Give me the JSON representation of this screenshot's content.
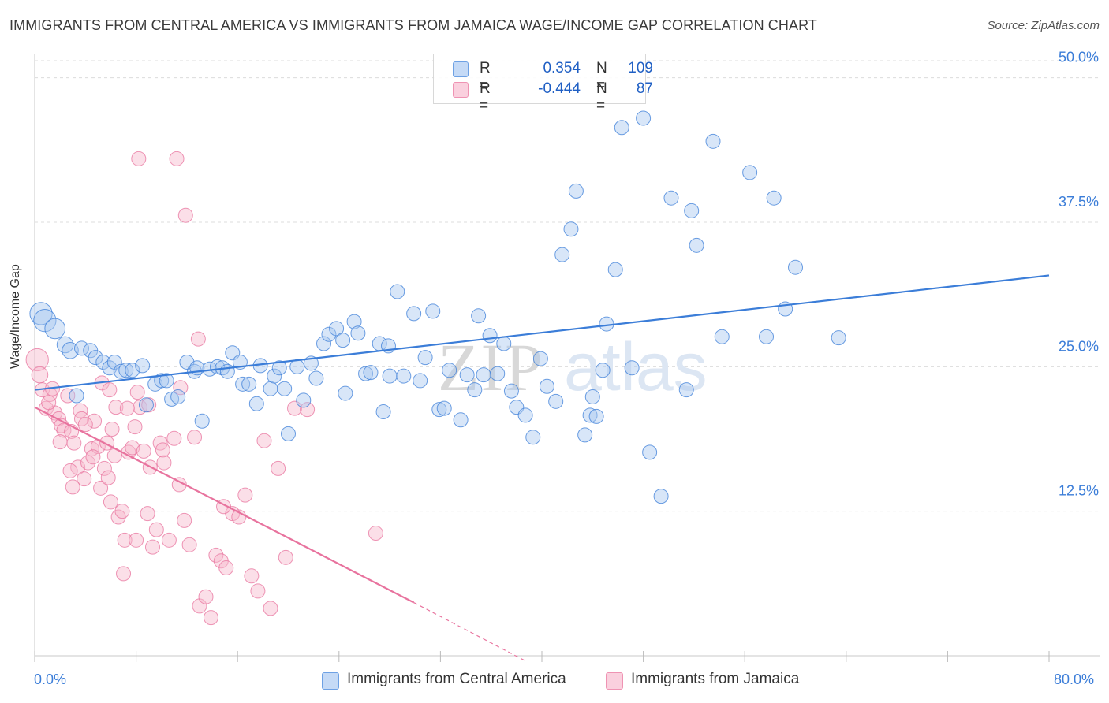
{
  "title": "IMMIGRANTS FROM CENTRAL AMERICA VS IMMIGRANTS FROM JAMAICA WAGE/INCOME GAP CORRELATION CHART",
  "source": "Source: ZipAtlas.com",
  "watermark": "ZIPatlas",
  "legend": {
    "rows": [
      {
        "r_label": "R =",
        "r_value": "0.354",
        "n_label": "N =",
        "n_value": "109",
        "color": "#a9c8f0"
      },
      {
        "r_label": "R =",
        "r_value": "-0.444",
        "n_label": "N =",
        "n_value": "87",
        "color": "#f6b9cd"
      }
    ]
  },
  "bottom_legend": {
    "central_america": "Immigrants from Central America",
    "jamaica": "Immigrants from Jamaica"
  },
  "colors": {
    "blue": "#3b7dd8",
    "blue_fill": "#a9c8f0",
    "pink": "#e8739e",
    "pink_fill": "#f6b9cd",
    "grid": "#dcdcdc",
    "axis_label": "#3b7dd8"
  },
  "chart_data": {
    "type": "scatter",
    "title": "IMMIGRANTS FROM CENTRAL AMERICA VS IMMIGRANTS FROM JAMAICA WAGE/INCOME GAP CORRELATION CHART",
    "xlabel": "",
    "ylabel": "Wage/Income Gap",
    "xlim": [
      0,
      80
    ],
    "ylim": [
      0,
      52.5
    ],
    "x_tick_labels": [
      "0.0%",
      "80.0%"
    ],
    "y_ticks": [
      12.5,
      25.0,
      37.5,
      50.0
    ],
    "y_tick_labels": [
      "12.5%",
      "25.0%",
      "37.5%",
      "50.0%"
    ],
    "grid": true,
    "series": [
      {
        "name": "Immigrants from Central America",
        "color": "#3b7dd8",
        "fill": "#a9c8f0",
        "trend": {
          "x": [
            0,
            80
          ],
          "y": [
            23.0,
            32.9
          ],
          "dashed_from": null
        },
        "points": [
          [
            0.5,
            29.6,
            2.2
          ],
          [
            0.8,
            29.0,
            2.2
          ],
          [
            1.6,
            28.3,
            2.0
          ],
          [
            2.4,
            26.9,
            1.6
          ],
          [
            2.8,
            26.4,
            1.6
          ],
          [
            3.3,
            22.5,
            1.4
          ],
          [
            3.7,
            26.6,
            1.4
          ],
          [
            4.4,
            26.4,
            1.4
          ],
          [
            4.8,
            25.8,
            1.4
          ],
          [
            5.4,
            25.4,
            1.4
          ],
          [
            5.9,
            24.9,
            1.4
          ],
          [
            6.3,
            25.4,
            1.4
          ],
          [
            6.8,
            24.6,
            1.4
          ],
          [
            7.2,
            24.7,
            1.4
          ],
          [
            7.7,
            24.7,
            1.4
          ],
          [
            8.5,
            25.1,
            1.4
          ],
          [
            8.8,
            21.7,
            1.4
          ],
          [
            9.5,
            23.5,
            1.4
          ],
          [
            10.0,
            23.8,
            1.4
          ],
          [
            10.4,
            23.8,
            1.4
          ],
          [
            10.8,
            22.2,
            1.4
          ],
          [
            11.3,
            22.4,
            1.4
          ],
          [
            12.0,
            25.4,
            1.4
          ],
          [
            12.6,
            24.6,
            1.4
          ],
          [
            13.2,
            20.3,
            1.4
          ],
          [
            13.8,
            24.8,
            1.4
          ],
          [
            14.4,
            25.0,
            1.4
          ],
          [
            14.8,
            24.9,
            1.4
          ],
          [
            15.2,
            24.6,
            1.4
          ],
          [
            15.6,
            26.2,
            1.4
          ],
          [
            16.2,
            25.4,
            1.4
          ],
          [
            16.4,
            23.5,
            1.4
          ],
          [
            16.9,
            23.5,
            1.4
          ],
          [
            17.5,
            21.8,
            1.4
          ],
          [
            17.8,
            25.1,
            1.4
          ],
          [
            18.6,
            23.1,
            1.4
          ],
          [
            18.9,
            24.2,
            1.4
          ],
          [
            19.3,
            24.9,
            1.4
          ],
          [
            19.7,
            23.1,
            1.4
          ],
          [
            20.0,
            19.2,
            1.4
          ],
          [
            20.7,
            25.0,
            1.4
          ],
          [
            21.2,
            22.1,
            1.4
          ],
          [
            21.8,
            25.3,
            1.4
          ],
          [
            22.2,
            24.0,
            1.4
          ],
          [
            22.8,
            27.0,
            1.4
          ],
          [
            23.2,
            27.8,
            1.4
          ],
          [
            23.8,
            28.3,
            1.4
          ],
          [
            24.3,
            27.3,
            1.4
          ],
          [
            24.5,
            22.7,
            1.4
          ],
          [
            25.2,
            28.9,
            1.4
          ],
          [
            25.5,
            27.9,
            1.4
          ],
          [
            26.1,
            24.4,
            1.4
          ],
          [
            26.5,
            24.5,
            1.4
          ],
          [
            27.2,
            27.0,
            1.4
          ],
          [
            27.5,
            21.1,
            1.4
          ],
          [
            28.0,
            24.2,
            1.4
          ],
          [
            28.6,
            31.5,
            1.4
          ],
          [
            29.1,
            24.2,
            1.4
          ],
          [
            29.9,
            29.6,
            1.4
          ],
          [
            30.4,
            23.8,
            1.4
          ],
          [
            30.8,
            25.8,
            1.4
          ],
          [
            31.4,
            29.8,
            1.4
          ],
          [
            31.9,
            21.3,
            1.4
          ],
          [
            32.3,
            21.4,
            1.4
          ],
          [
            32.7,
            24.7,
            1.4
          ],
          [
            33.6,
            20.4,
            1.4
          ],
          [
            34.1,
            24.3,
            1.4
          ],
          [
            34.7,
            23.0,
            1.4
          ],
          [
            35.0,
            29.4,
            1.4
          ],
          [
            35.4,
            24.3,
            1.4
          ],
          [
            35.9,
            27.7,
            1.4
          ],
          [
            36.5,
            24.4,
            1.4
          ],
          [
            37.0,
            27.0,
            1.4
          ],
          [
            37.6,
            22.9,
            1.4
          ],
          [
            38.0,
            21.5,
            1.4
          ],
          [
            38.7,
            20.8,
            1.4
          ],
          [
            39.3,
            18.9,
            1.4
          ],
          [
            39.9,
            25.7,
            1.4
          ],
          [
            40.4,
            23.3,
            1.4
          ],
          [
            41.1,
            22.0,
            1.4
          ],
          [
            41.6,
            34.7,
            1.4
          ],
          [
            42.3,
            36.9,
            1.4
          ],
          [
            42.7,
            40.2,
            1.4
          ],
          [
            43.4,
            19.1,
            1.4
          ],
          [
            43.8,
            20.8,
            1.4
          ],
          [
            44.3,
            20.7,
            1.4
          ],
          [
            44.8,
            24.7,
            1.4
          ],
          [
            45.1,
            28.7,
            1.4
          ],
          [
            45.8,
            33.4,
            1.4
          ],
          [
            46.3,
            45.7,
            1.4
          ],
          [
            47.1,
            24.9,
            1.4
          ],
          [
            48.0,
            46.5,
            1.4
          ],
          [
            48.5,
            17.6,
            1.4
          ],
          [
            49.4,
            13.8,
            1.4
          ],
          [
            50.2,
            39.6,
            1.4
          ],
          [
            51.4,
            23.0,
            1.4
          ],
          [
            51.8,
            38.5,
            1.4
          ],
          [
            52.2,
            35.5,
            1.4
          ],
          [
            53.5,
            44.5,
            1.4
          ],
          [
            54.2,
            27.6,
            1.4
          ],
          [
            56.4,
            41.8,
            1.4
          ],
          [
            57.7,
            27.6,
            1.4
          ],
          [
            58.3,
            39.6,
            1.4
          ],
          [
            59.2,
            30.0,
            1.4
          ],
          [
            60.0,
            33.6,
            1.4
          ],
          [
            63.4,
            27.5,
            1.4
          ],
          [
            44.0,
            22.4,
            1.4
          ],
          [
            27.9,
            26.8,
            1.4
          ],
          [
            12.8,
            24.9,
            1.4
          ]
        ]
      },
      {
        "name": "Immigrants from Jamaica",
        "color": "#e8739e",
        "fill": "#f6b9cd",
        "trend": {
          "x": [
            0,
            29.9,
            38.8
          ],
          "y": [
            21.5,
            4.6,
            -0.5
          ],
          "dashed_from": 29.9
        },
        "points": [
          [
            0.2,
            25.6,
            2.2
          ],
          [
            0.4,
            24.3,
            1.6
          ],
          [
            0.6,
            23.0,
            1.4
          ],
          [
            0.9,
            21.4,
            1.4
          ],
          [
            1.2,
            22.6,
            1.4
          ],
          [
            1.4,
            23.1,
            1.4
          ],
          [
            1.6,
            21.0,
            1.4
          ],
          [
            1.9,
            20.5,
            1.4
          ],
          [
            2.1,
            19.9,
            1.4
          ],
          [
            2.3,
            19.5,
            1.4
          ],
          [
            2.6,
            22.5,
            1.4
          ],
          [
            2.9,
            19.4,
            1.4
          ],
          [
            3.1,
            18.4,
            1.4
          ],
          [
            3.4,
            16.3,
            1.4
          ],
          [
            3.6,
            21.2,
            1.4
          ],
          [
            3.9,
            15.3,
            1.4
          ],
          [
            4.2,
            16.7,
            1.4
          ],
          [
            4.5,
            17.9,
            1.4
          ],
          [
            4.7,
            20.3,
            1.4
          ],
          [
            5.0,
            18.1,
            1.4
          ],
          [
            5.2,
            14.5,
            1.4
          ],
          [
            5.5,
            16.2,
            1.4
          ],
          [
            5.8,
            15.4,
            1.4
          ],
          [
            6.1,
            19.6,
            1.4
          ],
          [
            6.3,
            17.3,
            1.4
          ],
          [
            6.6,
            12.0,
            1.4
          ],
          [
            6.9,
            12.5,
            1.4
          ],
          [
            7.1,
            10.0,
            1.4
          ],
          [
            7.4,
            17.6,
            1.4
          ],
          [
            7.7,
            18.0,
            1.4
          ],
          [
            8.0,
            10.0,
            1.4
          ],
          [
            8.3,
            21.5,
            1.4
          ],
          [
            8.6,
            17.7,
            1.4
          ],
          [
            8.9,
            12.3,
            1.4
          ],
          [
            9.3,
            9.4,
            1.4
          ],
          [
            9.6,
            10.9,
            1.4
          ],
          [
            9.9,
            18.4,
            1.4
          ],
          [
            10.2,
            16.7,
            1.4
          ],
          [
            10.6,
            10.0,
            1.4
          ],
          [
            11.0,
            18.8,
            1.4
          ],
          [
            11.4,
            14.8,
            1.4
          ],
          [
            11.8,
            11.7,
            1.4
          ],
          [
            12.2,
            9.6,
            1.4
          ],
          [
            12.6,
            18.9,
            1.4
          ],
          [
            13.0,
            4.3,
            1.4
          ],
          [
            13.5,
            5.1,
            1.4
          ],
          [
            13.9,
            3.3,
            1.4
          ],
          [
            14.3,
            8.7,
            1.4
          ],
          [
            14.7,
            8.2,
            1.4
          ],
          [
            15.1,
            7.6,
            1.4
          ],
          [
            15.6,
            12.3,
            1.4
          ],
          [
            16.1,
            12.0,
            1.4
          ],
          [
            16.6,
            13.9,
            1.4
          ],
          [
            17.1,
            6.9,
            1.4
          ],
          [
            17.6,
            5.6,
            1.4
          ],
          [
            18.1,
            18.6,
            1.4
          ],
          [
            18.6,
            4.1,
            1.4
          ],
          [
            19.2,
            16.2,
            1.4
          ],
          [
            19.8,
            8.5,
            1.4
          ],
          [
            20.5,
            21.4,
            1.4
          ],
          [
            21.5,
            21.3,
            1.4
          ],
          [
            26.9,
            10.6,
            1.4
          ],
          [
            5.3,
            23.6,
            1.4
          ],
          [
            5.9,
            23.0,
            1.4
          ],
          [
            6.4,
            21.5,
            1.4
          ],
          [
            7.3,
            21.4,
            1.4
          ],
          [
            8.1,
            22.8,
            1.4
          ],
          [
            9.0,
            21.7,
            1.4
          ],
          [
            10.1,
            17.8,
            1.4
          ],
          [
            11.2,
            43.0,
            1.4
          ],
          [
            11.9,
            38.1,
            1.4
          ],
          [
            8.2,
            43.0,
            1.4
          ],
          [
            12.9,
            27.4,
            1.4
          ],
          [
            7.9,
            19.8,
            1.4
          ],
          [
            2.8,
            16.0,
            1.4
          ],
          [
            3.7,
            20.5,
            1.4
          ],
          [
            4.6,
            17.2,
            1.4
          ],
          [
            6.0,
            13.3,
            1.4
          ],
          [
            7.0,
            7.1,
            1.4
          ],
          [
            3.0,
            14.6,
            1.4
          ],
          [
            1.1,
            21.9,
            1.4
          ],
          [
            2.0,
            18.5,
            1.4
          ],
          [
            4.0,
            20.0,
            1.4
          ],
          [
            5.7,
            18.4,
            1.4
          ],
          [
            9.1,
            16.3,
            1.4
          ],
          [
            11.5,
            23.2,
            1.4
          ],
          [
            14.9,
            12.9,
            1.4
          ]
        ]
      }
    ]
  }
}
